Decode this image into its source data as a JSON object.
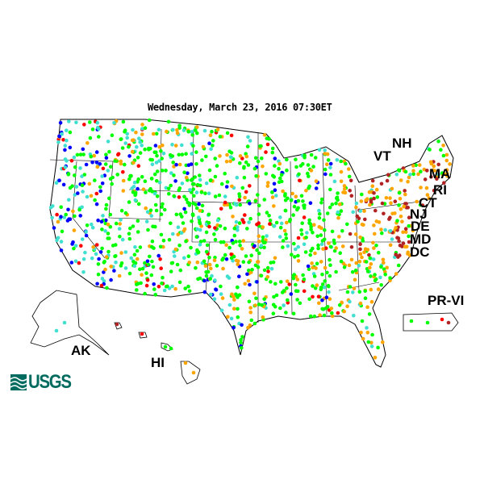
{
  "header": {
    "title": "Wednesday, March 23, 2016 07:30ET"
  },
  "state_labels": [
    "NH",
    "VT",
    "MA",
    "RI",
    "CT",
    "NJ",
    "DE",
    "MD",
    "DC",
    "PR-VI",
    "AK",
    "HI"
  ],
  "logo": {
    "text": "USGS"
  },
  "dot_colors": {
    "much_below": "#b22222",
    "below": "#ffa500",
    "normal": "#00ff00",
    "above": "#40e0d0",
    "much_above": "#0000ff",
    "low": "#ff0000",
    "high": "#000000"
  }
}
